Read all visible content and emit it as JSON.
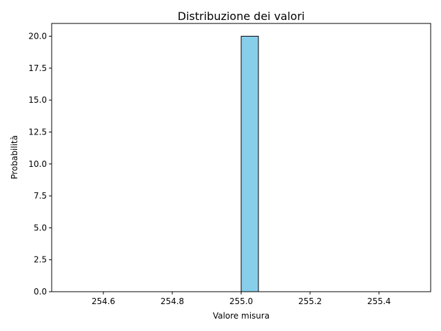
{
  "chart_data": {
    "type": "bar",
    "title": "Distribuzione dei valori",
    "xlabel": "Valore misura",
    "ylabel": "Probabilità",
    "bins": [
      [
        254.5,
        254.55
      ],
      [
        254.55,
        254.6
      ],
      [
        254.6,
        254.65
      ],
      [
        254.65,
        254.7
      ],
      [
        254.7,
        254.75
      ],
      [
        254.75,
        254.8
      ],
      [
        254.8,
        254.85
      ],
      [
        254.85,
        254.9
      ],
      [
        254.9,
        254.95
      ],
      [
        254.95,
        255.0
      ],
      [
        255.0,
        255.05
      ],
      [
        255.05,
        255.1
      ],
      [
        255.1,
        255.15
      ],
      [
        255.15,
        255.2
      ],
      [
        255.2,
        255.25
      ],
      [
        255.25,
        255.3
      ],
      [
        255.3,
        255.35
      ],
      [
        255.35,
        255.4
      ],
      [
        255.4,
        255.45
      ],
      [
        255.45,
        255.5
      ]
    ],
    "values": [
      0,
      0,
      0,
      0,
      0,
      0,
      0,
      0,
      0,
      0,
      20,
      0,
      0,
      0,
      0,
      0,
      0,
      0,
      0,
      0
    ],
    "xlim": [
      254.45,
      255.55
    ],
    "ylim": [
      0,
      21
    ],
    "x_ticks": [
      254.6,
      254.8,
      255.0,
      255.2,
      255.4
    ],
    "x_tick_labels": [
      "254.6",
      "254.8",
      "255.0",
      "255.2",
      "255.4"
    ],
    "y_ticks": [
      0,
      2.5,
      5,
      7.5,
      10,
      12.5,
      15,
      17.5,
      20
    ],
    "y_tick_labels": [
      "0.0",
      "2.5",
      "5.0",
      "7.5",
      "10.0",
      "12.5",
      "15.0",
      "17.5",
      "20.0"
    ],
    "bar_color": "#87ceeb",
    "edge_color": "#000000",
    "grid": false,
    "legend": "none"
  }
}
